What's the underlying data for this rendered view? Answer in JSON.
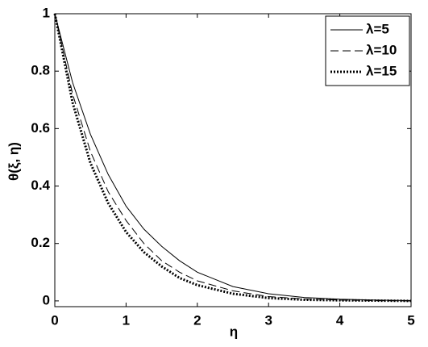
{
  "chart_data": {
    "type": "line",
    "xlabel": "η",
    "ylabel": "θ(ξ, η)",
    "x": [
      0,
      0.25,
      0.5,
      0.75,
      1,
      1.25,
      1.5,
      1.75,
      2,
      2.5,
      3,
      3.5,
      4,
      4.5,
      5
    ],
    "series": [
      {
        "name": "λ=5",
        "color": "#000000",
        "style": "solid",
        "values": [
          1,
          0.76,
          0.58,
          0.44,
          0.33,
          0.25,
          0.19,
          0.14,
          0.1,
          0.05,
          0.025,
          0.012,
          0.006,
          0.003,
          0.001
        ]
      },
      {
        "name": "λ=10",
        "color": "#000000",
        "style": "dashed",
        "values": [
          1,
          0.72,
          0.52,
          0.38,
          0.28,
          0.2,
          0.14,
          0.1,
          0.07,
          0.035,
          0.015,
          0.007,
          0.003,
          0.001,
          0
        ]
      },
      {
        "name": "λ=15",
        "color": "#000000",
        "style": "dotted",
        "values": [
          1,
          0.69,
          0.48,
          0.34,
          0.24,
          0.17,
          0.12,
          0.08,
          0.055,
          0.025,
          0.01,
          0.004,
          0.002,
          0.001,
          0
        ]
      }
    ],
    "xlim": [
      0,
      5
    ],
    "xticks": [
      0,
      1,
      2,
      3,
      4,
      5
    ],
    "ylim": [
      -0.02,
      1
    ],
    "yticks": [
      0,
      0.2,
      0.4,
      0.6,
      0.8,
      1
    ],
    "grid": false,
    "legend": "upper-right"
  }
}
